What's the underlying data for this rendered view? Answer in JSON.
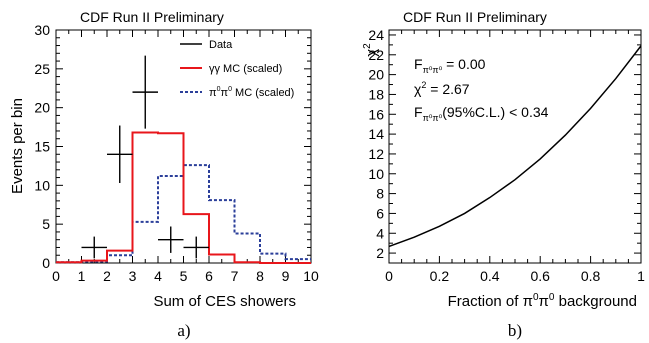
{
  "chart_data": [
    {
      "type": "histogram",
      "header": "CDF Run II Preliminary",
      "xlabel": "Sum of CES showers",
      "ylabel": "Events per bin",
      "xlim": [
        0,
        10
      ],
      "ylim": [
        0,
        30
      ],
      "xticks": [
        0,
        1,
        2,
        3,
        4,
        5,
        6,
        7,
        8,
        9,
        10
      ],
      "yticks": [
        0,
        5,
        10,
        15,
        20,
        25,
        30
      ],
      "caption": "a)",
      "legend": {
        "position": "top-right",
        "entries": [
          {
            "label": "Data",
            "style": "data",
            "color": "#000000"
          },
          {
            "label": "γγ MC (scaled)",
            "style": "solid",
            "color": "#e8161b"
          },
          {
            "label_main": "π",
            "label_sup1": "0",
            "label_mid": "π",
            "label_sup2": "0",
            "label_rest": " MC (scaled)",
            "style": "dashed",
            "color": "#2b3f9a"
          }
        ]
      },
      "series": [
        {
          "name": "Data",
          "kind": "points",
          "x": [
            1.5,
            2.5,
            3.5,
            4.5,
            5.5
          ],
          "y": [
            2,
            14,
            22,
            3,
            2
          ],
          "yerr": [
            1.4,
            3.7,
            4.7,
            1.7,
            1.4
          ],
          "xerr": 0.5,
          "color": "#000000"
        },
        {
          "name": "γγ MC (scaled)",
          "kind": "step",
          "bin_edges": [
            0,
            1,
            2,
            3,
            4,
            5,
            6,
            7,
            8,
            9,
            10
          ],
          "values": [
            0.1,
            0.3,
            1.6,
            16.8,
            16.7,
            6.3,
            1.1,
            0.1,
            0,
            0
          ],
          "color": "#e8161b"
        },
        {
          "name": "π0π0 MC (scaled)",
          "kind": "step-dashed",
          "bin_edges": [
            0,
            1,
            2,
            3,
            4,
            5,
            6,
            7,
            8,
            9,
            10
          ],
          "values": [
            0.1,
            0.2,
            1.0,
            5.3,
            11.2,
            12.6,
            8.1,
            3.8,
            1.2,
            0.5
          ],
          "color": "#2b3f9a"
        }
      ]
    },
    {
      "type": "line",
      "header": "CDF Run II Preliminary",
      "xlabel_main": "Fraction of π",
      "xlabel_sup1": "0",
      "xlabel_mid": "π",
      "xlabel_sup2": "0",
      "xlabel_rest": " background",
      "ylabel_main": "χ",
      "ylabel_sup": "2",
      "xlim": [
        0,
        1
      ],
      "ylim": [
        1,
        24.5
      ],
      "xticks": [
        0,
        0.2,
        0.4,
        0.6,
        0.8,
        1
      ],
      "xtick_labels": [
        "0",
        "0.2",
        "0.4",
        "0.6",
        "0.8",
        "1"
      ],
      "yticks": [
        2,
        4,
        6,
        8,
        10,
        12,
        14,
        16,
        18,
        20,
        22,
        24
      ],
      "caption": "b)",
      "annotations": {
        "fit_label": "F",
        "fit_sub": "π⁰π⁰",
        "fit_value": " = 0.00",
        "chi_label": "χ",
        "chi_sup": "2",
        "chi_value": " =  2.67",
        "limit_label": "F",
        "limit_sub": "π⁰π⁰",
        "limit_value": "(95%C.L.) < 0.34"
      },
      "series": [
        {
          "x": [
            0,
            0.1,
            0.2,
            0.3,
            0.4,
            0.5,
            0.6,
            0.7,
            0.8,
            0.9,
            1.0
          ],
          "y": [
            2.67,
            3.6,
            4.7,
            6.0,
            7.6,
            9.4,
            11.5,
            13.9,
            16.6,
            19.6,
            22.9
          ],
          "color": "#000000"
        }
      ]
    }
  ]
}
